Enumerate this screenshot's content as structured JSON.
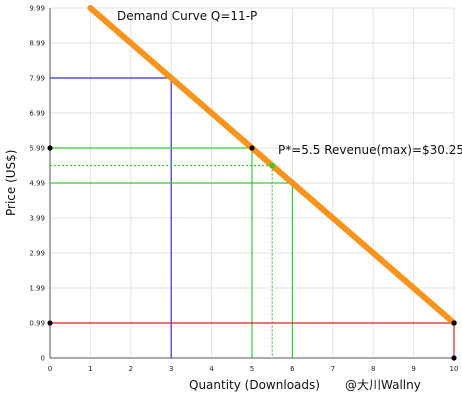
{
  "chart_data": {
    "type": "line",
    "title": "Demand Curve Q=11-P",
    "xlabel": "Quantity (Downloads)",
    "ylabel": "Price (US$)",
    "credit": "@大川Wallny",
    "annotation": "P*=5.5 Revenue(max)=$30.25",
    "x_ticks": [
      "0",
      "1",
      "2",
      "3",
      "4",
      "5",
      "6",
      "7",
      "8",
      "9",
      "10"
    ],
    "y_ticks": [
      "0",
      "0.99",
      "1.99",
      "2.99",
      "3.99",
      "4.99",
      "5.99",
      "6.99",
      "7.99",
      "8.99",
      "9.99"
    ],
    "xlim": [
      0,
      10
    ],
    "ylim": [
      0,
      10
    ],
    "grid": true,
    "series": [
      {
        "role": "demand_curve",
        "color": "#f7941d",
        "x": [
          1,
          10
        ],
        "y": [
          10,
          1
        ]
      }
    ],
    "price_markers": [
      {
        "quantity": 3,
        "price": 8,
        "color": "#3333cc",
        "style": "solid",
        "endpoint_dots": false
      },
      {
        "quantity": 5,
        "price": 6,
        "color": "#33cc33",
        "style": "solid",
        "endpoint_dots": true
      },
      {
        "quantity": 5.5,
        "price": 5.5,
        "color": "#33cc33",
        "style": "dotted",
        "endpoint_dots": false,
        "curve_dot_color": "#33cc33"
      },
      {
        "quantity": 6,
        "price": 5,
        "color": "#33cc33",
        "style": "solid",
        "endpoint_dots": false
      },
      {
        "quantity": 10,
        "price": 1,
        "color": "#dd2222",
        "style": "solid",
        "endpoint_dots": true
      }
    ]
  }
}
